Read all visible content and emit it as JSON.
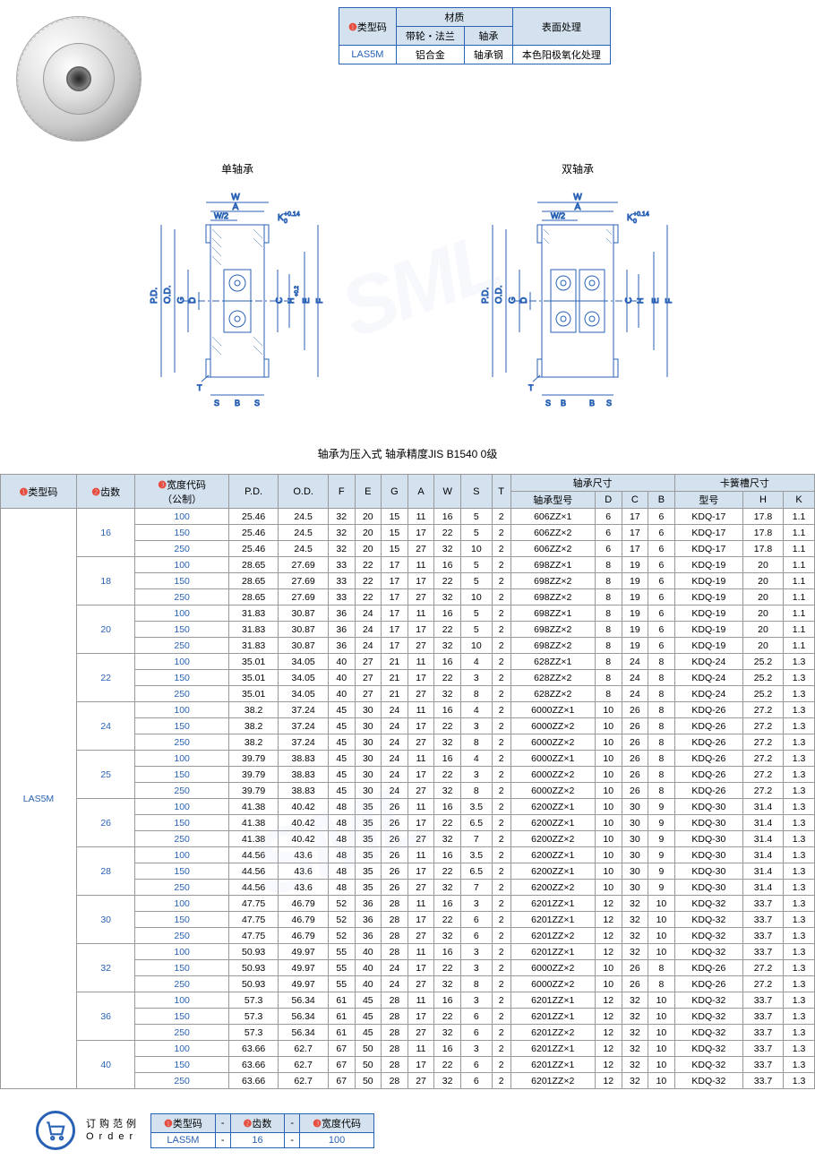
{
  "material_table": {
    "h1": "类型码",
    "h2": "材质",
    "h3": "表面处理",
    "h2a": "带轮・法兰",
    "h2b": "轴承",
    "r1": "LAS5M",
    "r2": "铝合金",
    "r3": "轴承钢",
    "r4": "本色阳极氧化处理"
  },
  "diagram": {
    "left_title": "单轴承",
    "right_title": "双轴承",
    "labels_left": [
      "W",
      "A",
      "W/2",
      "K",
      "P.D.",
      "O.D.",
      "G",
      "D",
      "C",
      "H",
      "E",
      "F",
      "T",
      "S",
      "B",
      "S"
    ],
    "k_tol": "+0.14",
    "k_tol2": "0",
    "h_tol": "+0.2",
    "h_tol2": "0"
  },
  "note": "轴承为压入式 轴承精度JIS B1540 0级",
  "headers": {
    "c1": "类型码",
    "c2": "齿数",
    "c3": "宽度代码",
    "c3b": "（公制）",
    "c4": "P.D.",
    "c5": "O.D.",
    "c6": "F",
    "c7": "E",
    "c8": "G",
    "c9": "A",
    "c10": "W",
    "c11": "S",
    "c12": "T",
    "g1": "轴承尺寸",
    "g1a": "轴承型号",
    "g1b": "D",
    "g1c": "C",
    "g1d": "B",
    "g2": "卡簧槽尺寸",
    "g2a": "型号",
    "g2b": "H",
    "g2c": "K",
    "num1": "❶",
    "num2": "❷",
    "num3": "❸"
  },
  "type_code": "LAS5M",
  "rows": [
    {
      "teeth": "16",
      "w": "100",
      "pd": "25.46",
      "od": "24.5",
      "f": "32",
      "e": "20",
      "g": "15",
      "a": "11",
      "aw": "16",
      "s": "5",
      "t": "2",
      "bm": "606ZZ×1",
      "d": "6",
      "c": "17",
      "b": "6",
      "mo": "KDQ-17",
      "h": "17.8",
      "k": "1.1"
    },
    {
      "teeth": "",
      "w": "150",
      "pd": "25.46",
      "od": "24.5",
      "f": "32",
      "e": "20",
      "g": "15",
      "a": "17",
      "aw": "22",
      "s": "5",
      "t": "2",
      "bm": "606ZZ×2",
      "d": "6",
      "c": "17",
      "b": "6",
      "mo": "KDQ-17",
      "h": "17.8",
      "k": "1.1"
    },
    {
      "teeth": "",
      "w": "250",
      "pd": "25.46",
      "od": "24.5",
      "f": "32",
      "e": "20",
      "g": "15",
      "a": "27",
      "aw": "32",
      "s": "10",
      "t": "2",
      "bm": "606ZZ×2",
      "d": "6",
      "c": "17",
      "b": "6",
      "mo": "KDQ-17",
      "h": "17.8",
      "k": "1.1",
      "last": true
    },
    {
      "teeth": "18",
      "w": "100",
      "pd": "28.65",
      "od": "27.69",
      "f": "33",
      "e": "22",
      "g": "17",
      "a": "11",
      "aw": "16",
      "s": "5",
      "t": "2",
      "bm": "698ZZ×1",
      "d": "8",
      "c": "19",
      "b": "6",
      "mo": "KDQ-19",
      "h": "20",
      "k": "1.1"
    },
    {
      "teeth": "",
      "w": "150",
      "pd": "28.65",
      "od": "27.69",
      "f": "33",
      "e": "22",
      "g": "17",
      "a": "17",
      "aw": "22",
      "s": "5",
      "t": "2",
      "bm": "698ZZ×2",
      "d": "8",
      "c": "19",
      "b": "6",
      "mo": "KDQ-19",
      "h": "20",
      "k": "1.1"
    },
    {
      "teeth": "",
      "w": "250",
      "pd": "28.65",
      "od": "27.69",
      "f": "33",
      "e": "22",
      "g": "17",
      "a": "27",
      "aw": "32",
      "s": "10",
      "t": "2",
      "bm": "698ZZ×2",
      "d": "8",
      "c": "19",
      "b": "6",
      "mo": "KDQ-19",
      "h": "20",
      "k": "1.1",
      "last": true
    },
    {
      "teeth": "20",
      "w": "100",
      "pd": "31.83",
      "od": "30.87",
      "f": "36",
      "e": "24",
      "g": "17",
      "a": "11",
      "aw": "16",
      "s": "5",
      "t": "2",
      "bm": "698ZZ×1",
      "d": "8",
      "c": "19",
      "b": "6",
      "mo": "KDQ-19",
      "h": "20",
      "k": "1.1"
    },
    {
      "teeth": "",
      "w": "150",
      "pd": "31.83",
      "od": "30.87",
      "f": "36",
      "e": "24",
      "g": "17",
      "a": "17",
      "aw": "22",
      "s": "5",
      "t": "2",
      "bm": "698ZZ×2",
      "d": "8",
      "c": "19",
      "b": "6",
      "mo": "KDQ-19",
      "h": "20",
      "k": "1.1"
    },
    {
      "teeth": "",
      "w": "250",
      "pd": "31.83",
      "od": "30.87",
      "f": "36",
      "e": "24",
      "g": "17",
      "a": "27",
      "aw": "32",
      "s": "10",
      "t": "2",
      "bm": "698ZZ×2",
      "d": "8",
      "c": "19",
      "b": "6",
      "mo": "KDQ-19",
      "h": "20",
      "k": "1.1",
      "last": true
    },
    {
      "teeth": "22",
      "w": "100",
      "pd": "35.01",
      "od": "34.05",
      "f": "40",
      "e": "27",
      "g": "21",
      "a": "11",
      "aw": "16",
      "s": "4",
      "t": "2",
      "bm": "628ZZ×1",
      "d": "8",
      "c": "24",
      "b": "8",
      "mo": "KDQ-24",
      "h": "25.2",
      "k": "1.3"
    },
    {
      "teeth": "",
      "w": "150",
      "pd": "35.01",
      "od": "34.05",
      "f": "40",
      "e": "27",
      "g": "21",
      "a": "17",
      "aw": "22",
      "s": "3",
      "t": "2",
      "bm": "628ZZ×2",
      "d": "8",
      "c": "24",
      "b": "8",
      "mo": "KDQ-24",
      "h": "25.2",
      "k": "1.3"
    },
    {
      "teeth": "",
      "w": "250",
      "pd": "35.01",
      "od": "34.05",
      "f": "40",
      "e": "27",
      "g": "21",
      "a": "27",
      "aw": "32",
      "s": "8",
      "t": "2",
      "bm": "628ZZ×2",
      "d": "8",
      "c": "24",
      "b": "8",
      "mo": "KDQ-24",
      "h": "25.2",
      "k": "1.3",
      "last": true
    },
    {
      "teeth": "24",
      "w": "100",
      "pd": "38.2",
      "od": "37.24",
      "f": "45",
      "e": "30",
      "g": "24",
      "a": "11",
      "aw": "16",
      "s": "4",
      "t": "2",
      "bm": "6000ZZ×1",
      "d": "10",
      "c": "26",
      "b": "8",
      "mo": "KDQ-26",
      "h": "27.2",
      "k": "1.3"
    },
    {
      "teeth": "",
      "w": "150",
      "pd": "38.2",
      "od": "37.24",
      "f": "45",
      "e": "30",
      "g": "24",
      "a": "17",
      "aw": "22",
      "s": "3",
      "t": "2",
      "bm": "6000ZZ×2",
      "d": "10",
      "c": "26",
      "b": "8",
      "mo": "KDQ-26",
      "h": "27.2",
      "k": "1.3"
    },
    {
      "teeth": "",
      "w": "250",
      "pd": "38.2",
      "od": "37.24",
      "f": "45",
      "e": "30",
      "g": "24",
      "a": "27",
      "aw": "32",
      "s": "8",
      "t": "2",
      "bm": "6000ZZ×2",
      "d": "10",
      "c": "26",
      "b": "8",
      "mo": "KDQ-26",
      "h": "27.2",
      "k": "1.3",
      "last": true
    },
    {
      "teeth": "25",
      "w": "100",
      "pd": "39.79",
      "od": "38.83",
      "f": "45",
      "e": "30",
      "g": "24",
      "a": "11",
      "aw": "16",
      "s": "4",
      "t": "2",
      "bm": "6000ZZ×1",
      "d": "10",
      "c": "26",
      "b": "8",
      "mo": "KDQ-26",
      "h": "27.2",
      "k": "1.3"
    },
    {
      "teeth": "",
      "w": "150",
      "pd": "39.79",
      "od": "38.83",
      "f": "45",
      "e": "30",
      "g": "24",
      "a": "17",
      "aw": "22",
      "s": "3",
      "t": "2",
      "bm": "6000ZZ×2",
      "d": "10",
      "c": "26",
      "b": "8",
      "mo": "KDQ-26",
      "h": "27.2",
      "k": "1.3"
    },
    {
      "teeth": "",
      "w": "250",
      "pd": "39.79",
      "od": "38.83",
      "f": "45",
      "e": "30",
      "g": "24",
      "a": "27",
      "aw": "32",
      "s": "8",
      "t": "2",
      "bm": "6000ZZ×2",
      "d": "10",
      "c": "26",
      "b": "8",
      "mo": "KDQ-26",
      "h": "27.2",
      "k": "1.3",
      "last": true
    },
    {
      "teeth": "26",
      "w": "100",
      "pd": "41.38",
      "od": "40.42",
      "f": "48",
      "e": "35",
      "g": "26",
      "a": "11",
      "aw": "16",
      "s": "3.5",
      "t": "2",
      "bm": "6200ZZ×1",
      "d": "10",
      "c": "30",
      "b": "9",
      "mo": "KDQ-30",
      "h": "31.4",
      "k": "1.3"
    },
    {
      "teeth": "",
      "w": "150",
      "pd": "41.38",
      "od": "40.42",
      "f": "48",
      "e": "35",
      "g": "26",
      "a": "17",
      "aw": "22",
      "s": "6.5",
      "t": "2",
      "bm": "6200ZZ×1",
      "d": "10",
      "c": "30",
      "b": "9",
      "mo": "KDQ-30",
      "h": "31.4",
      "k": "1.3"
    },
    {
      "teeth": "",
      "w": "250",
      "pd": "41.38",
      "od": "40.42",
      "f": "48",
      "e": "35",
      "g": "26",
      "a": "27",
      "aw": "32",
      "s": "7",
      "t": "2",
      "bm": "6200ZZ×2",
      "d": "10",
      "c": "30",
      "b": "9",
      "mo": "KDQ-30",
      "h": "31.4",
      "k": "1.3",
      "last": true
    },
    {
      "teeth": "28",
      "w": "100",
      "pd": "44.56",
      "od": "43.6",
      "f": "48",
      "e": "35",
      "g": "26",
      "a": "11",
      "aw": "16",
      "s": "3.5",
      "t": "2",
      "bm": "6200ZZ×1",
      "d": "10",
      "c": "30",
      "b": "9",
      "mo": "KDQ-30",
      "h": "31.4",
      "k": "1.3"
    },
    {
      "teeth": "",
      "w": "150",
      "pd": "44.56",
      "od": "43.6",
      "f": "48",
      "e": "35",
      "g": "26",
      "a": "17",
      "aw": "22",
      "s": "6.5",
      "t": "2",
      "bm": "6200ZZ×1",
      "d": "10",
      "c": "30",
      "b": "9",
      "mo": "KDQ-30",
      "h": "31.4",
      "k": "1.3"
    },
    {
      "teeth": "",
      "w": "250",
      "pd": "44.56",
      "od": "43.6",
      "f": "48",
      "e": "35",
      "g": "26",
      "a": "27",
      "aw": "32",
      "s": "7",
      "t": "2",
      "bm": "6200ZZ×2",
      "d": "10",
      "c": "30",
      "b": "9",
      "mo": "KDQ-30",
      "h": "31.4",
      "k": "1.3",
      "last": true
    },
    {
      "teeth": "30",
      "w": "100",
      "pd": "47.75",
      "od": "46.79",
      "f": "52",
      "e": "36",
      "g": "28",
      "a": "11",
      "aw": "16",
      "s": "3",
      "t": "2",
      "bm": "6201ZZ×1",
      "d": "12",
      "c": "32",
      "b": "10",
      "mo": "KDQ-32",
      "h": "33.7",
      "k": "1.3"
    },
    {
      "teeth": "",
      "w": "150",
      "pd": "47.75",
      "od": "46.79",
      "f": "52",
      "e": "36",
      "g": "28",
      "a": "17",
      "aw": "22",
      "s": "6",
      "t": "2",
      "bm": "6201ZZ×1",
      "d": "12",
      "c": "32",
      "b": "10",
      "mo": "KDQ-32",
      "h": "33.7",
      "k": "1.3"
    },
    {
      "teeth": "",
      "w": "250",
      "pd": "47.75",
      "od": "46.79",
      "f": "52",
      "e": "36",
      "g": "28",
      "a": "27",
      "aw": "32",
      "s": "6",
      "t": "2",
      "bm": "6201ZZ×2",
      "d": "12",
      "c": "32",
      "b": "10",
      "mo": "KDQ-32",
      "h": "33.7",
      "k": "1.3",
      "last": true
    },
    {
      "teeth": "32",
      "w": "100",
      "pd": "50.93",
      "od": "49.97",
      "f": "55",
      "e": "40",
      "g": "28",
      "a": "11",
      "aw": "16",
      "s": "3",
      "t": "2",
      "bm": "6201ZZ×1",
      "d": "12",
      "c": "32",
      "b": "10",
      "mo": "KDQ-32",
      "h": "33.7",
      "k": "1.3"
    },
    {
      "teeth": "",
      "w": "150",
      "pd": "50.93",
      "od": "49.97",
      "f": "55",
      "e": "40",
      "g": "24",
      "a": "17",
      "aw": "22",
      "s": "3",
      "t": "2",
      "bm": "6000ZZ×2",
      "d": "10",
      "c": "26",
      "b": "8",
      "mo": "KDQ-26",
      "h": "27.2",
      "k": "1.3"
    },
    {
      "teeth": "",
      "w": "250",
      "pd": "50.93",
      "od": "49.97",
      "f": "55",
      "e": "40",
      "g": "24",
      "a": "27",
      "aw": "32",
      "s": "8",
      "t": "2",
      "bm": "6000ZZ×2",
      "d": "10",
      "c": "26",
      "b": "8",
      "mo": "KDQ-26",
      "h": "27.2",
      "k": "1.3",
      "last": true
    },
    {
      "teeth": "36",
      "w": "100",
      "pd": "57.3",
      "od": "56.34",
      "f": "61",
      "e": "45",
      "g": "28",
      "a": "11",
      "aw": "16",
      "s": "3",
      "t": "2",
      "bm": "6201ZZ×1",
      "d": "12",
      "c": "32",
      "b": "10",
      "mo": "KDQ-32",
      "h": "33.7",
      "k": "1.3"
    },
    {
      "teeth": "",
      "w": "150",
      "pd": "57.3",
      "od": "56.34",
      "f": "61",
      "e": "45",
      "g": "28",
      "a": "17",
      "aw": "22",
      "s": "6",
      "t": "2",
      "bm": "6201ZZ×1",
      "d": "12",
      "c": "32",
      "b": "10",
      "mo": "KDQ-32",
      "h": "33.7",
      "k": "1.3"
    },
    {
      "teeth": "",
      "w": "250",
      "pd": "57.3",
      "od": "56.34",
      "f": "61",
      "e": "45",
      "g": "28",
      "a": "27",
      "aw": "32",
      "s": "6",
      "t": "2",
      "bm": "6201ZZ×2",
      "d": "12",
      "c": "32",
      "b": "10",
      "mo": "KDQ-32",
      "h": "33.7",
      "k": "1.3",
      "last": true
    },
    {
      "teeth": "40",
      "w": "100",
      "pd": "63.66",
      "od": "62.7",
      "f": "67",
      "e": "50",
      "g": "28",
      "a": "11",
      "aw": "16",
      "s": "3",
      "t": "2",
      "bm": "6201ZZ×1",
      "d": "12",
      "c": "32",
      "b": "10",
      "mo": "KDQ-32",
      "h": "33.7",
      "k": "1.3"
    },
    {
      "teeth": "",
      "w": "150",
      "pd": "63.66",
      "od": "62.7",
      "f": "67",
      "e": "50",
      "g": "28",
      "a": "17",
      "aw": "22",
      "s": "6",
      "t": "2",
      "bm": "6201ZZ×1",
      "d": "12",
      "c": "32",
      "b": "10",
      "mo": "KDQ-32",
      "h": "33.7",
      "k": "1.3"
    },
    {
      "teeth": "",
      "w": "250",
      "pd": "63.66",
      "od": "62.7",
      "f": "67",
      "e": "50",
      "g": "28",
      "a": "27",
      "aw": "32",
      "s": "6",
      "t": "2",
      "bm": "6201ZZ×2",
      "d": "12",
      "c": "32",
      "b": "10",
      "mo": "KDQ-32",
      "h": "33.7",
      "k": "1.3",
      "last": true
    }
  ],
  "order": {
    "label_cn": "订购范例",
    "label_en": "Order",
    "h1": "类型码",
    "h2": "齿数",
    "h3": "宽度代码",
    "v1": "LAS5M",
    "v2": "16",
    "v3": "100",
    "dash": "-"
  },
  "colors": {
    "header_bg": "#d4e2f0",
    "border": "#2962b5",
    "link": "#2962b5",
    "red": "#e74c3c"
  }
}
